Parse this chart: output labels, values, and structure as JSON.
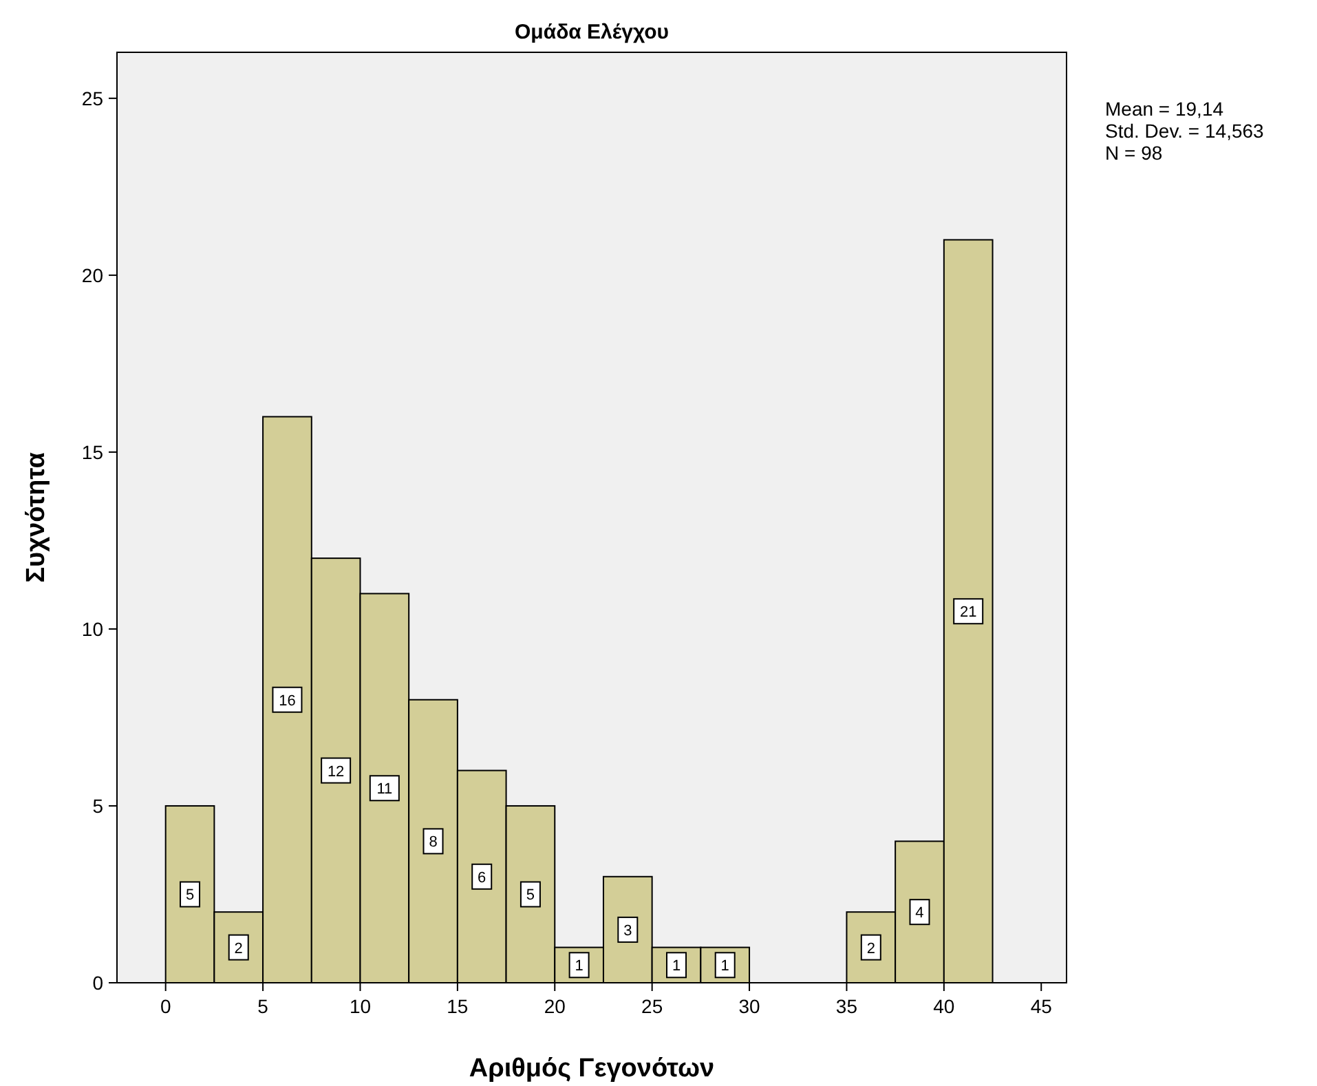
{
  "chart_data": {
    "type": "histogram",
    "title": "Ομάδα Ελέγχου",
    "xlabel": "Αριθμός Γεγονότων",
    "ylabel": "Συχνότητα",
    "bins": [
      0,
      2.5,
      5,
      7.5,
      10,
      12.5,
      15,
      17.5,
      20,
      22.5,
      25,
      27.5,
      30,
      32.5,
      35,
      37.5,
      40,
      42.5
    ],
    "values": [
      5,
      2,
      16,
      12,
      11,
      8,
      6,
      5,
      1,
      3,
      1,
      1,
      0,
      0,
      2,
      4,
      21
    ],
    "color": "#d3ce97",
    "xlim": [
      -2.5,
      46.3
    ],
    "xticks": [
      0,
      5,
      10,
      15,
      20,
      25,
      30,
      35,
      40,
      45
    ],
    "ylim": [
      0,
      26.3
    ],
    "yticks": [
      0,
      5,
      10,
      15,
      20,
      25
    ],
    "grid": false,
    "value_labels": [
      "5",
      "2",
      "16",
      "12",
      "11",
      "8",
      "6",
      "5",
      "1",
      "3",
      "1",
      "1",
      null,
      null,
      "2",
      "4",
      "21"
    ],
    "annotations": [
      "Mean = 19,14",
      "Std. Dev. = 14,563",
      "N = 98"
    ]
  }
}
